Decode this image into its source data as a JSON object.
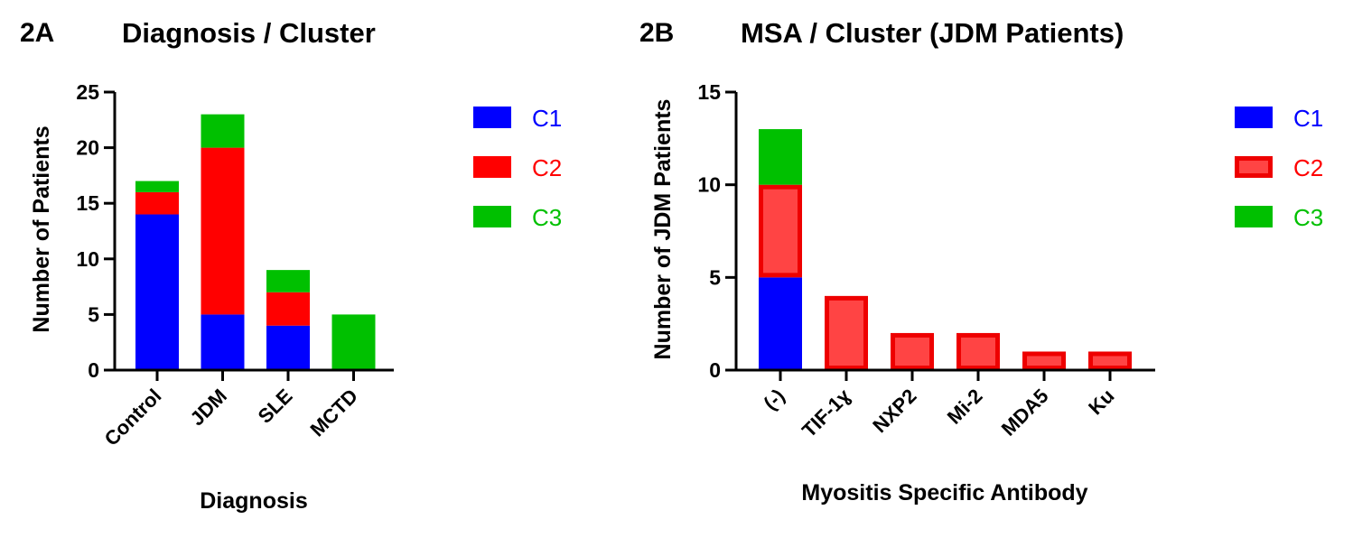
{
  "chart_data": [
    {
      "panel": "2A",
      "type": "bar",
      "stacked": true,
      "title": "Diagnosis / Cluster",
      "xlabel": "Diagnosis",
      "ylabel": "Number of  Patients",
      "ylim": [
        0,
        25
      ],
      "yticks": [
        0,
        5,
        10,
        15,
        20,
        25
      ],
      "categories": [
        "Control",
        "JDM",
        "SLE",
        "MCTD"
      ],
      "series": [
        {
          "name": "C1",
          "color": "#0000ff",
          "values": [
            14,
            5,
            4,
            0
          ]
        },
        {
          "name": "C2",
          "color": "#ff0000",
          "values": [
            2,
            15,
            3,
            0
          ]
        },
        {
          "name": "C3",
          "color": "#00c000",
          "values": [
            1,
            3,
            2,
            5
          ]
        }
      ],
      "legend": "right"
    },
    {
      "panel": "2B",
      "type": "bar",
      "stacked": true,
      "title": "MSA / Cluster (JDM Patients)",
      "xlabel": "Myositis  Specific Antibody",
      "ylabel": "Number of JDM Patients",
      "ylim": [
        0,
        15
      ],
      "yticks": [
        0,
        5,
        10,
        15
      ],
      "categories": [
        "(-)",
        "TIF-1ɣ",
        "NXP2",
        "Mi-2",
        "MDA5",
        "Ku"
      ],
      "series": [
        {
          "name": "C1",
          "color": "#0000ff",
          "values": [
            5,
            0,
            0,
            0,
            0,
            0
          ]
        },
        {
          "name": "C2",
          "color": "#ff4444",
          "values": [
            5,
            4,
            2,
            2,
            1,
            1
          ]
        },
        {
          "name": "C3",
          "color": "#00c000",
          "values": [
            3,
            0,
            0,
            0,
            0,
            0
          ]
        }
      ],
      "legend": "right"
    }
  ]
}
